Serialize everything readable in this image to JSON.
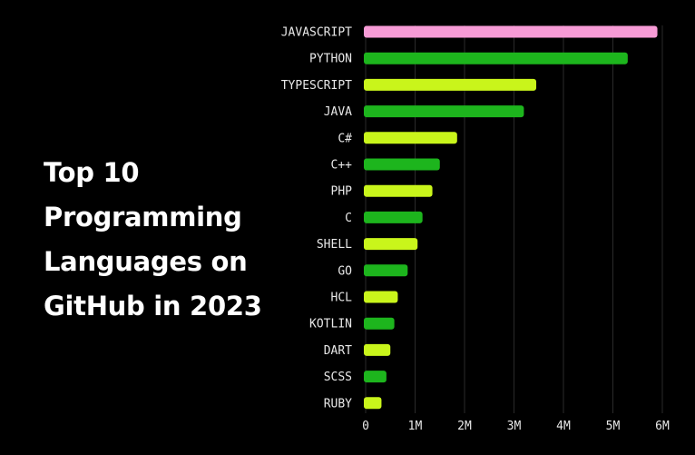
{
  "title_lines": [
    "Top 10",
    "Programming",
    "Languages on",
    "GitHub in 2023"
  ],
  "colors": {
    "background": "#000000",
    "highlight": "#f79bd6",
    "green": "#1db51d",
    "lime": "#c9f51b",
    "grid": "#2a2a2a",
    "text": "#e8e8e8"
  },
  "chart_data": {
    "type": "bar",
    "orientation": "horizontal",
    "categories": [
      "JAVASCRIPT",
      "PYTHON",
      "TYPESCRIPT",
      "JAVA",
      "C#",
      "C++",
      "PHP",
      "C",
      "SHELL",
      "GO",
      "HCL",
      "KOTLIN",
      "DART",
      "SCSS",
      "RUBY"
    ],
    "values": [
      5.9,
      5.3,
      3.45,
      3.2,
      1.85,
      1.5,
      1.35,
      1.15,
      1.05,
      0.85,
      0.65,
      0.58,
      0.5,
      0.42,
      0.32
    ],
    "bar_colors": [
      "highlight",
      "green",
      "lime",
      "green",
      "lime",
      "green",
      "lime",
      "green",
      "lime",
      "green",
      "lime",
      "green",
      "lime",
      "green",
      "lime"
    ],
    "xticks": [
      "0",
      "1M",
      "2M",
      "3M",
      "4M",
      "5M",
      "6M"
    ],
    "xlim": [
      0,
      6
    ],
    "grid": "vertical"
  }
}
